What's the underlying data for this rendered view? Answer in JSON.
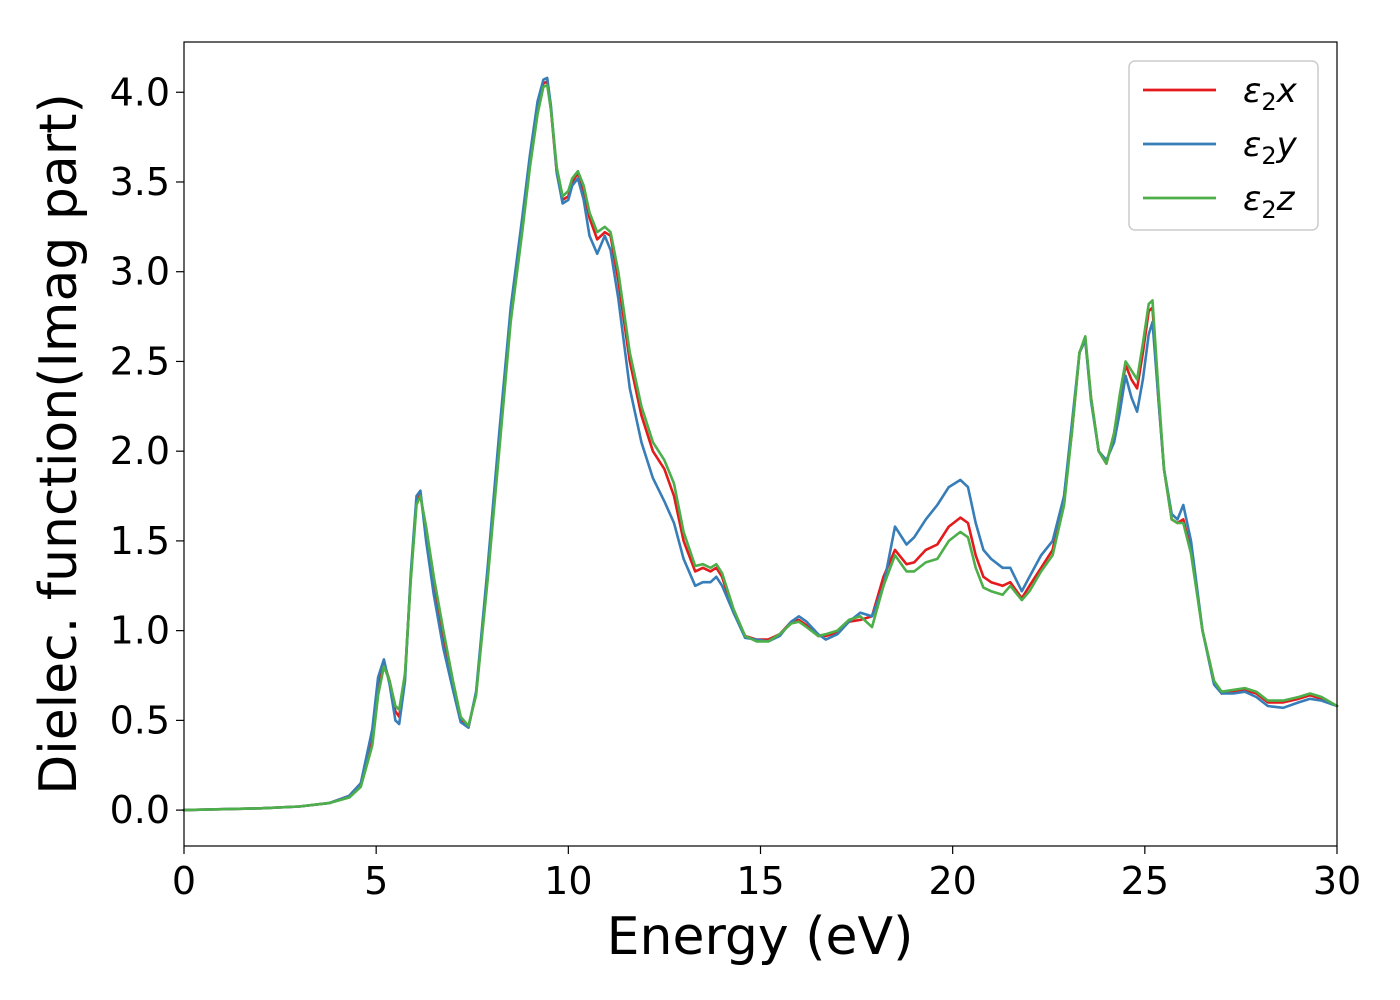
{
  "chart_data": {
    "type": "line",
    "title": "",
    "xlabel": "Energy (eV)",
    "ylabel": "Dielec. function(Imag part)",
    "xlim": [
      0,
      30
    ],
    "ylim": [
      -0.2,
      4.28
    ],
    "xticks": [
      0,
      5,
      10,
      15,
      20,
      25,
      30
    ],
    "xtick_labels": [
      "0",
      "5",
      "10",
      "15",
      "20",
      "25",
      "30"
    ],
    "yticks": [
      0.0,
      0.5,
      1.0,
      1.5,
      2.0,
      2.5,
      3.0,
      3.5,
      4.0
    ],
    "ytick_labels": [
      "0.0",
      "0.5",
      "1.0",
      "1.5",
      "2.0",
      "2.5",
      "3.0",
      "3.5",
      "4.0"
    ],
    "grid": false,
    "legend_position": "top-right",
    "series": [
      {
        "name": "ε₂x",
        "legend": {
          "symbol": "ε",
          "sub": "2",
          "axis": "x"
        },
        "color": "#e41a1c",
        "x": [
          0,
          1,
          2,
          3,
          3.8,
          4.3,
          4.6,
          4.9,
          5.05,
          5.2,
          5.35,
          5.5,
          5.6,
          5.75,
          5.9,
          6.05,
          6.15,
          6.3,
          6.5,
          6.75,
          7.0,
          7.2,
          7.4,
          7.6,
          7.9,
          8.2,
          8.5,
          8.8,
          9.0,
          9.2,
          9.35,
          9.45,
          9.55,
          9.7,
          9.85,
          10.0,
          10.1,
          10.25,
          10.4,
          10.55,
          10.75,
          10.95,
          11.1,
          11.3,
          11.6,
          11.9,
          12.2,
          12.5,
          12.75,
          13.0,
          13.3,
          13.5,
          13.7,
          13.85,
          14.0,
          14.3,
          14.6,
          14.9,
          15.2,
          15.5,
          15.8,
          16.0,
          16.2,
          16.5,
          16.7,
          17.0,
          17.3,
          17.6,
          17.9,
          18.2,
          18.5,
          18.8,
          19.0,
          19.3,
          19.6,
          19.9,
          20.2,
          20.4,
          20.6,
          20.8,
          21.0,
          21.3,
          21.5,
          21.8,
          22.0,
          22.3,
          22.6,
          22.9,
          23.1,
          23.3,
          23.45,
          23.6,
          23.8,
          24.0,
          24.2,
          24.35,
          24.5,
          24.65,
          24.8,
          24.95,
          25.1,
          25.2,
          25.35,
          25.5,
          25.7,
          25.85,
          26.0,
          26.2,
          26.5,
          26.8,
          27.0,
          27.3,
          27.6,
          27.9,
          28.2,
          28.6,
          29.0,
          29.3,
          29.6,
          30.0
        ],
        "y": [
          0.0,
          0.005,
          0.01,
          0.02,
          0.04,
          0.08,
          0.15,
          0.4,
          0.68,
          0.82,
          0.72,
          0.55,
          0.52,
          0.75,
          1.3,
          1.72,
          1.76,
          1.55,
          1.25,
          0.95,
          0.7,
          0.5,
          0.46,
          0.65,
          1.3,
          2.05,
          2.75,
          3.25,
          3.6,
          3.9,
          4.05,
          4.06,
          3.9,
          3.55,
          3.4,
          3.42,
          3.5,
          3.55,
          3.45,
          3.3,
          3.18,
          3.22,
          3.2,
          2.95,
          2.5,
          2.2,
          2.0,
          1.9,
          1.75,
          1.5,
          1.33,
          1.35,
          1.33,
          1.35,
          1.3,
          1.1,
          0.97,
          0.95,
          0.95,
          0.98,
          1.05,
          1.06,
          1.03,
          0.97,
          0.97,
          0.99,
          1.05,
          1.06,
          1.08,
          1.3,
          1.45,
          1.37,
          1.38,
          1.45,
          1.48,
          1.58,
          1.63,
          1.6,
          1.42,
          1.3,
          1.27,
          1.25,
          1.27,
          1.18,
          1.25,
          1.35,
          1.45,
          1.75,
          2.1,
          2.55,
          2.62,
          2.3,
          2.0,
          1.93,
          2.1,
          2.3,
          2.48,
          2.4,
          2.35,
          2.55,
          2.78,
          2.8,
          2.3,
          1.9,
          1.62,
          1.6,
          1.62,
          1.45,
          1.0,
          0.72,
          0.65,
          0.66,
          0.67,
          0.65,
          0.6,
          0.6,
          0.62,
          0.64,
          0.62,
          0.58
        ]
      },
      {
        "name": "ε₂y",
        "legend": {
          "symbol": "ε",
          "sub": "2",
          "axis": "y"
        },
        "color": "#377eb8",
        "x": [
          0,
          1,
          2,
          3,
          3.8,
          4.3,
          4.6,
          4.9,
          5.05,
          5.2,
          5.35,
          5.5,
          5.6,
          5.75,
          5.9,
          6.05,
          6.15,
          6.3,
          6.5,
          6.75,
          7.0,
          7.2,
          7.4,
          7.6,
          7.9,
          8.2,
          8.5,
          8.8,
          9.0,
          9.2,
          9.35,
          9.45,
          9.55,
          9.7,
          9.85,
          10.0,
          10.1,
          10.25,
          10.4,
          10.55,
          10.75,
          10.95,
          11.1,
          11.3,
          11.6,
          11.9,
          12.2,
          12.5,
          12.75,
          13.0,
          13.3,
          13.5,
          13.7,
          13.85,
          14.0,
          14.3,
          14.6,
          14.9,
          15.2,
          15.5,
          15.8,
          16.0,
          16.2,
          16.5,
          16.7,
          17.0,
          17.3,
          17.6,
          17.9,
          18.2,
          18.5,
          18.8,
          19.0,
          19.3,
          19.6,
          19.9,
          20.2,
          20.4,
          20.6,
          20.8,
          21.0,
          21.3,
          21.5,
          21.8,
          22.0,
          22.3,
          22.6,
          22.9,
          23.1,
          23.3,
          23.45,
          23.6,
          23.8,
          24.0,
          24.2,
          24.35,
          24.5,
          24.65,
          24.8,
          24.95,
          25.1,
          25.2,
          25.35,
          25.5,
          25.7,
          25.85,
          26.0,
          26.2,
          26.5,
          26.8,
          27.0,
          27.3,
          27.6,
          27.9,
          28.2,
          28.6,
          29.0,
          29.3,
          29.6,
          30.0
        ],
        "y": [
          0.0,
          0.005,
          0.01,
          0.02,
          0.04,
          0.08,
          0.15,
          0.45,
          0.74,
          0.84,
          0.7,
          0.5,
          0.48,
          0.72,
          1.32,
          1.75,
          1.78,
          1.5,
          1.2,
          0.9,
          0.67,
          0.49,
          0.46,
          0.66,
          1.35,
          2.1,
          2.8,
          3.3,
          3.65,
          3.95,
          4.07,
          4.08,
          3.92,
          3.55,
          3.38,
          3.4,
          3.48,
          3.52,
          3.4,
          3.2,
          3.1,
          3.2,
          3.12,
          2.85,
          2.35,
          2.05,
          1.85,
          1.72,
          1.6,
          1.4,
          1.25,
          1.27,
          1.27,
          1.3,
          1.25,
          1.1,
          0.96,
          0.95,
          0.94,
          0.97,
          1.05,
          1.08,
          1.05,
          0.98,
          0.95,
          0.98,
          1.05,
          1.1,
          1.08,
          1.25,
          1.58,
          1.48,
          1.52,
          1.62,
          1.7,
          1.8,
          1.84,
          1.8,
          1.6,
          1.45,
          1.4,
          1.35,
          1.35,
          1.22,
          1.3,
          1.42,
          1.5,
          1.75,
          2.15,
          2.55,
          2.62,
          2.28,
          2.0,
          1.95,
          2.05,
          2.22,
          2.42,
          2.3,
          2.22,
          2.4,
          2.65,
          2.72,
          2.3,
          1.9,
          1.65,
          1.62,
          1.7,
          1.5,
          1.0,
          0.7,
          0.65,
          0.65,
          0.66,
          0.63,
          0.58,
          0.57,
          0.6,
          0.62,
          0.61,
          0.58
        ]
      },
      {
        "name": "ε₂z",
        "legend": {
          "symbol": "ε",
          "sub": "2",
          "axis": "z"
        },
        "color": "#4daf4a",
        "x": [
          0,
          1,
          2,
          3,
          3.8,
          4.3,
          4.6,
          4.9,
          5.05,
          5.2,
          5.35,
          5.5,
          5.6,
          5.75,
          5.9,
          6.05,
          6.15,
          6.3,
          6.5,
          6.75,
          7.0,
          7.2,
          7.4,
          7.6,
          7.9,
          8.2,
          8.5,
          8.8,
          9.0,
          9.2,
          9.35,
          9.45,
          9.55,
          9.7,
          9.85,
          10.0,
          10.1,
          10.25,
          10.4,
          10.55,
          10.75,
          10.95,
          11.1,
          11.3,
          11.6,
          11.9,
          12.2,
          12.5,
          12.75,
          13.0,
          13.3,
          13.5,
          13.7,
          13.85,
          14.0,
          14.3,
          14.6,
          14.9,
          15.2,
          15.5,
          15.8,
          16.0,
          16.2,
          16.5,
          16.7,
          17.0,
          17.3,
          17.6,
          17.9,
          18.2,
          18.5,
          18.8,
          19.0,
          19.3,
          19.6,
          19.9,
          20.2,
          20.4,
          20.6,
          20.8,
          21.0,
          21.3,
          21.5,
          21.8,
          22.0,
          22.3,
          22.6,
          22.9,
          23.1,
          23.3,
          23.45,
          23.6,
          23.8,
          24.0,
          24.2,
          24.35,
          24.5,
          24.65,
          24.8,
          24.95,
          25.1,
          25.2,
          25.35,
          25.5,
          25.7,
          25.85,
          26.0,
          26.2,
          26.5,
          26.8,
          27.0,
          27.3,
          27.6,
          27.9,
          28.2,
          28.6,
          29.0,
          29.3,
          29.6,
          30.0
        ],
        "y": [
          0.0,
          0.005,
          0.01,
          0.02,
          0.04,
          0.07,
          0.13,
          0.36,
          0.64,
          0.8,
          0.72,
          0.58,
          0.56,
          0.76,
          1.28,
          1.7,
          1.75,
          1.58,
          1.3,
          1.0,
          0.72,
          0.52,
          0.47,
          0.64,
          1.28,
          2.0,
          2.72,
          3.22,
          3.58,
          3.88,
          4.03,
          4.04,
          3.9,
          3.58,
          3.42,
          3.45,
          3.52,
          3.56,
          3.48,
          3.33,
          3.22,
          3.25,
          3.22,
          3.0,
          2.55,
          2.25,
          2.05,
          1.95,
          1.82,
          1.55,
          1.36,
          1.37,
          1.35,
          1.37,
          1.32,
          1.12,
          0.97,
          0.94,
          0.94,
          0.98,
          1.04,
          1.05,
          1.02,
          0.97,
          0.98,
          1.0,
          1.06,
          1.08,
          1.02,
          1.25,
          1.42,
          1.33,
          1.33,
          1.38,
          1.4,
          1.5,
          1.55,
          1.52,
          1.35,
          1.24,
          1.22,
          1.2,
          1.25,
          1.17,
          1.22,
          1.33,
          1.42,
          1.7,
          2.1,
          2.55,
          2.64,
          2.3,
          2.0,
          1.93,
          2.1,
          2.32,
          2.5,
          2.45,
          2.4,
          2.6,
          2.82,
          2.84,
          2.35,
          1.9,
          1.62,
          1.6,
          1.6,
          1.43,
          1.0,
          0.72,
          0.66,
          0.67,
          0.68,
          0.66,
          0.61,
          0.61,
          0.63,
          0.65,
          0.63,
          0.58
        ]
      }
    ]
  }
}
